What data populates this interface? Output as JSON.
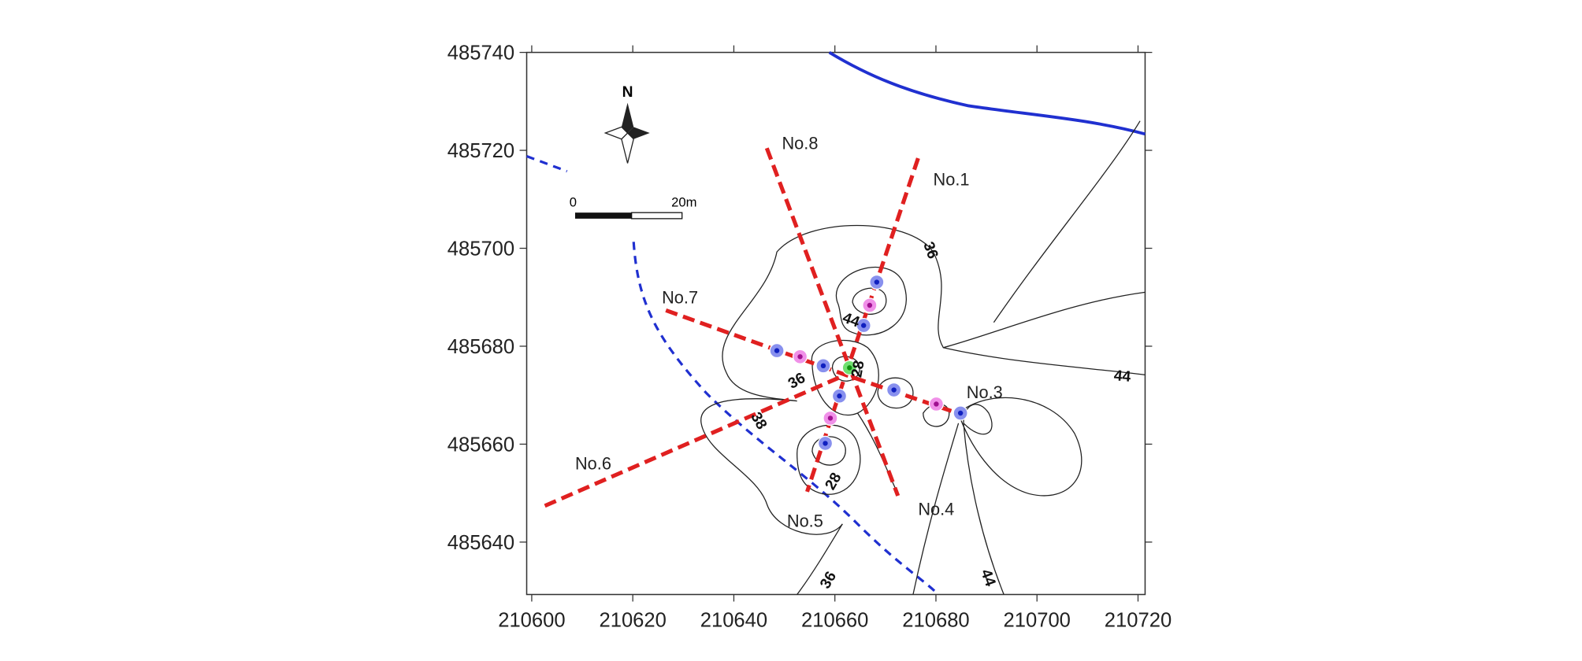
{
  "chart_data": {
    "type": "contour",
    "xlim": [
      210599,
      210721.4
    ],
    "ylim": [
      485629.3,
      485740
    ],
    "xticks": [
      210600,
      210620,
      210640,
      210660,
      210680,
      210700,
      210720
    ],
    "yticks": [
      485640,
      485660,
      485680,
      485700,
      485720,
      485740
    ],
    "north_label": "N",
    "scale_labels": [
      "0",
      "20m"
    ],
    "line_labels": [
      "No.1",
      "No.3",
      "No.4",
      "No.5",
      "No.6",
      "No.7",
      "No.8"
    ],
    "contour_labels": [
      36,
      44,
      28,
      36,
      38,
      28,
      44,
      36,
      44
    ]
  }
}
